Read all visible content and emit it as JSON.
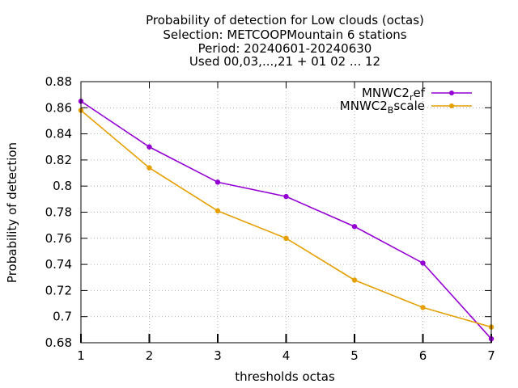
{
  "chart_data": {
    "type": "line",
    "title_lines": [
      "Probability of detection  for Low clouds (octas)",
      "Selection: METCOOPMountain      6 stations",
      "Period: 20240601-20240630",
      "Used 00,03,...,21 + 01 02 ... 12"
    ],
    "xlabel": "thresholds octas",
    "ylabel": "Probability of detection",
    "x": [
      1,
      2,
      3,
      4,
      5,
      6,
      7
    ],
    "xlim": [
      1,
      7
    ],
    "ylim": [
      0.68,
      0.88
    ],
    "x_ticks": [
      1,
      2,
      3,
      4,
      5,
      6,
      7
    ],
    "y_ticks": [
      0.68,
      0.7,
      0.72,
      0.74,
      0.76,
      0.78,
      0.8,
      0.82,
      0.84,
      0.86,
      0.88
    ],
    "y_tick_labels": [
      "0.68",
      "0.7",
      "0.72",
      "0.74",
      "0.76",
      "0.78",
      "0.8",
      "0.82",
      "0.84",
      "0.86",
      "0.88"
    ],
    "grid": true,
    "legend_position": "top-right",
    "series": [
      {
        "legend_main": "MNWC2",
        "legend_sub": "r",
        "legend_tail": "ef",
        "color": "#9400d3",
        "values": [
          0.865,
          0.83,
          0.803,
          0.792,
          0.769,
          0.741,
          0.683
        ]
      },
      {
        "legend_main": "MNWC2",
        "legend_sub": "B",
        "legend_tail": "scale",
        "color": "#e69f00",
        "values": [
          0.858,
          0.814,
          0.781,
          0.76,
          0.728,
          0.707,
          0.692
        ]
      }
    ]
  }
}
